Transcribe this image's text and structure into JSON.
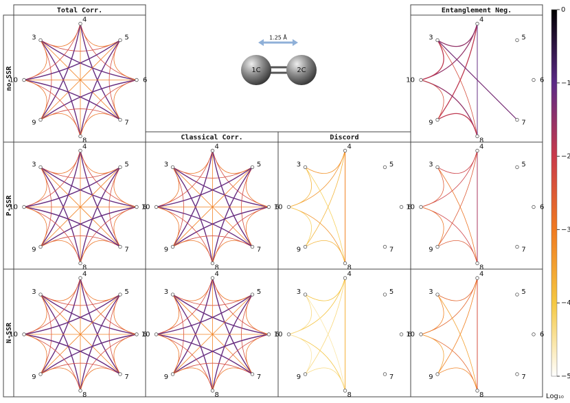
{
  "columns": [
    "Total Corr.",
    "Classical Corr.",
    "Discord",
    "Entanglement Neg."
  ],
  "rows": [
    "no-SSR",
    "P-SSR",
    "N-SSR"
  ],
  "nodes": [
    "3",
    "4",
    "5",
    "6",
    "7",
    "8",
    "9",
    "10"
  ],
  "molecule": {
    "atoms": [
      "1C",
      "2C"
    ],
    "bond_length": "1.25 Å"
  },
  "colorbar": {
    "ticks": [
      0,
      {
        "value": -1,
        "label": "−1"
      },
      {
        "value": -2,
        "label": "−2"
      },
      {
        "value": -3,
        "label": "−3"
      },
      {
        "value": -4,
        "label": "−4"
      },
      {
        "value": -5,
        "label": "−5"
      }
    ],
    "lim": [
      -5,
      0
    ],
    "label": "Log₁₀"
  }
}
